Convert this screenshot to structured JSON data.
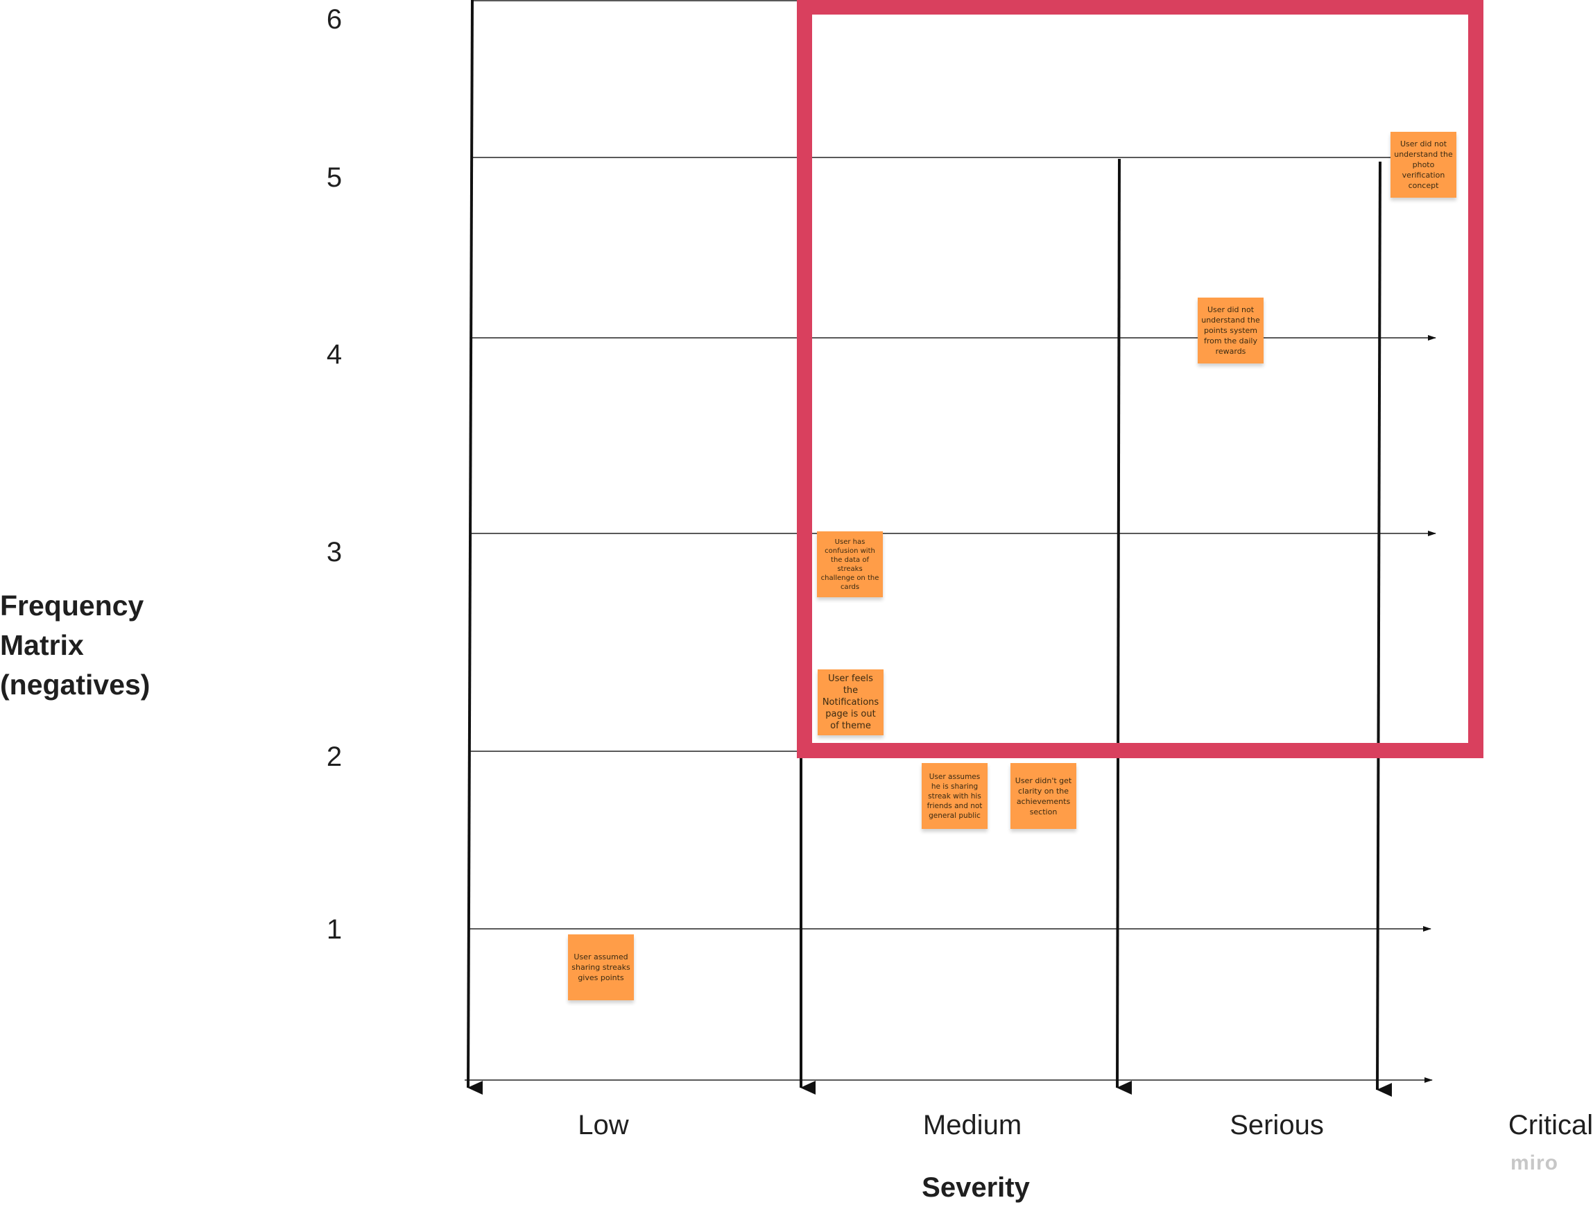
{
  "y_axis": {
    "title_lines": [
      "Frequency",
      "Matrix",
      "(negatives)"
    ],
    "ticks": [
      "1",
      "2",
      "3",
      "4",
      "5",
      "6"
    ]
  },
  "x_axis": {
    "title": "Severity",
    "ticks": [
      "Low",
      "Medium",
      "Serious",
      "Critical"
    ]
  },
  "highlight_color": "#d9405e",
  "sticky_color": "#ff9d48",
  "stickies": [
    {
      "text": "User did not understand the photo verification concept",
      "severity": "Critical",
      "frequency": 5
    },
    {
      "text": "User did not understand the points system from the daily rewards",
      "severity": "Serious",
      "frequency": 4
    },
    {
      "text": "User has confusion with the data of streaks challenge on the cards",
      "severity": "Medium",
      "frequency": 3
    },
    {
      "text": "User feels the Notifications page is out of theme",
      "severity": "Medium",
      "frequency": 2
    },
    {
      "text": "User assumes he is sharing streak with his friends and not general public",
      "severity": "Medium",
      "frequency": 2
    },
    {
      "text": "User didn't get clarity on the achievements section",
      "severity": "Medium",
      "frequency": 2
    },
    {
      "text": "User assumed sharing streaks gives points",
      "severity": "Low",
      "frequency": 1
    }
  ],
  "brand": "miro"
}
